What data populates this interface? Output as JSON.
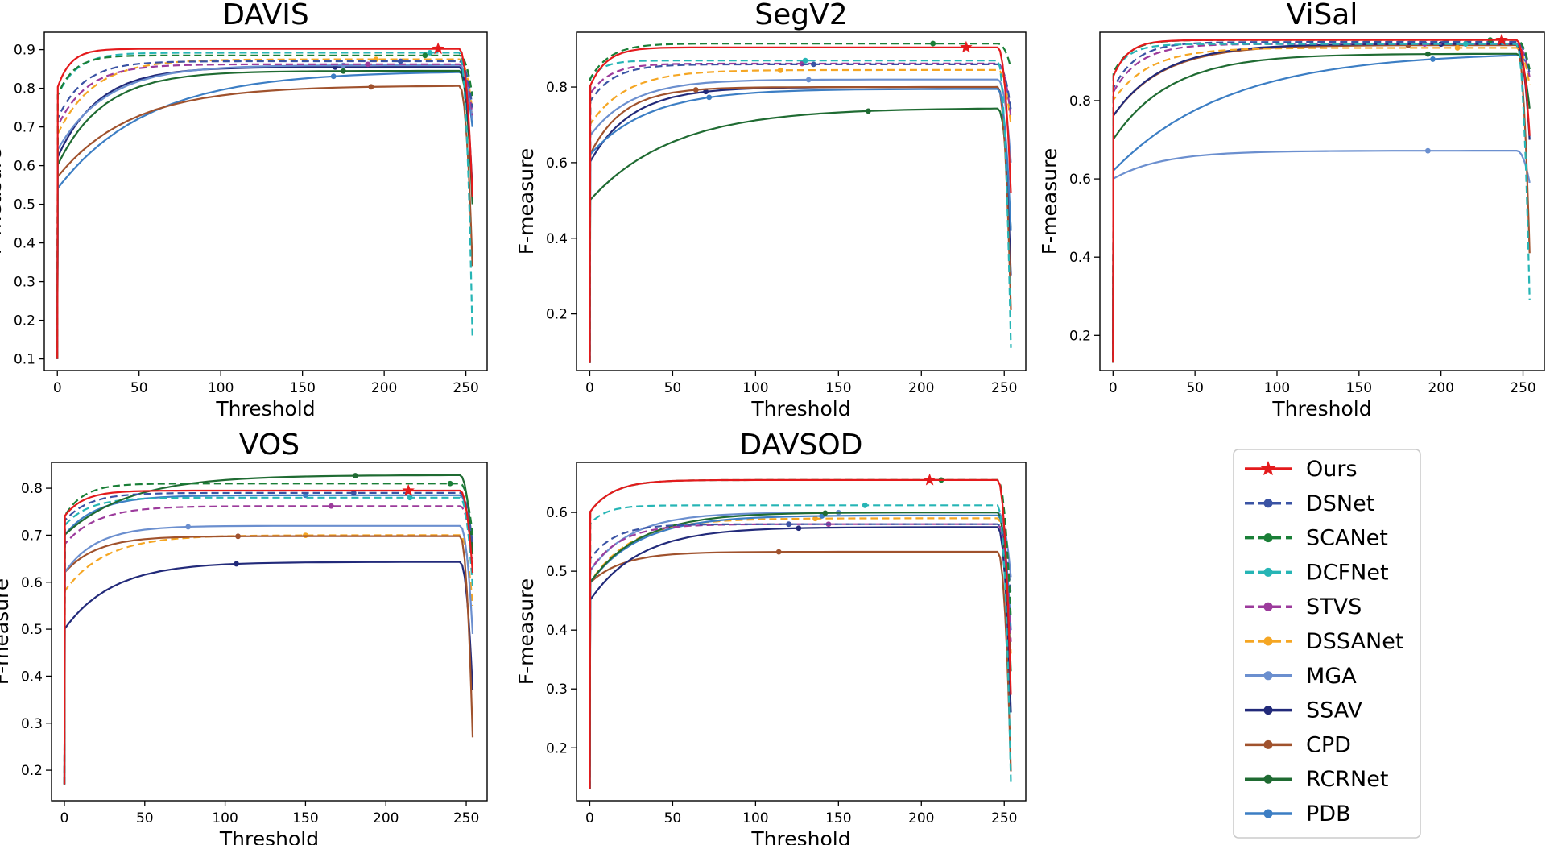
{
  "chart_data": [
    {
      "type": "line",
      "title": "DAVIS",
      "xlabel": "Threshold",
      "ylabel": "F-measure",
      "xlim": [
        -8,
        263
      ],
      "ylim": [
        0.07,
        0.945
      ],
      "xticks": [
        0,
        50,
        100,
        150,
        200,
        250
      ],
      "yticks": [
        0.1,
        0.2,
        0.3,
        0.4,
        0.5,
        0.6,
        0.7,
        0.8,
        0.9
      ],
      "series": [
        {
          "name": "PDB",
          "start": 0.1,
          "a": 0.54,
          "plateau": 0.845,
          "tau": 55,
          "drop": 0.7,
          "peak_x": 169
        },
        {
          "name": "CPD",
          "start": 0.1,
          "a": 0.57,
          "plateau": 0.807,
          "tau": 45,
          "drop": 0.34,
          "peak_x": 192
        },
        {
          "name": "RCRNet",
          "start": 0.1,
          "a": 0.6,
          "plateau": 0.845,
          "tau": 28,
          "drop": 0.5,
          "peak_x": 175
        },
        {
          "name": "SSAV",
          "start": 0.1,
          "a": 0.62,
          "plateau": 0.855,
          "tau": 25,
          "drop": 0.54,
          "peak_x": 170
        },
        {
          "name": "MGA",
          "start": 0.1,
          "a": 0.64,
          "plateau": 0.86,
          "tau": 30,
          "drop": 0.72,
          "peak_x": 175
        },
        {
          "name": "DSSANet",
          "start": 0.1,
          "a": 0.68,
          "plateau": 0.875,
          "tau": 22,
          "drop": 0.74,
          "peak_x": 195
        },
        {
          "name": "STVS",
          "start": 0.1,
          "a": 0.7,
          "plateau": 0.862,
          "tau": 18,
          "drop": 0.73,
          "peak_x": 190
        },
        {
          "name": "DSNet",
          "start": 0.1,
          "a": 0.72,
          "plateau": 0.87,
          "tau": 16,
          "drop": 0.75,
          "peak_x": 210
        },
        {
          "name": "DCFNet",
          "start": 0.1,
          "a": 0.78,
          "plateau": 0.892,
          "tau": 12,
          "drop": 0.16,
          "peak_x": 228
        },
        {
          "name": "SCANet",
          "start": 0.1,
          "a": 0.78,
          "plateau": 0.885,
          "tau": 10,
          "drop": 0.78,
          "peak_x": 225
        },
        {
          "name": "Ours",
          "start": 0.1,
          "a": 0.8,
          "plateau": 0.902,
          "tau": 8,
          "drop": 0.52,
          "peak_x": 233
        }
      ]
    },
    {
      "type": "line",
      "title": "SegV2",
      "xlabel": "Threshold",
      "ylabel": "F-measure",
      "xlim": [
        -8,
        263
      ],
      "ylim": [
        0.05,
        0.945
      ],
      "xticks": [
        0,
        50,
        100,
        150,
        200,
        250
      ],
      "yticks": [
        0.2,
        0.4,
        0.6,
        0.8
      ],
      "series": [
        {
          "name": "RCRNet",
          "start": 0.07,
          "a": 0.5,
          "plateau": 0.745,
          "tau": 50,
          "drop": 0.42,
          "peak_x": 168
        },
        {
          "name": "SSAV",
          "start": 0.07,
          "a": 0.6,
          "plateau": 0.8,
          "tau": 25,
          "drop": 0.3,
          "peak_x": 70
        },
        {
          "name": "CPD",
          "start": 0.07,
          "a": 0.62,
          "plateau": 0.8,
          "tau": 20,
          "drop": 0.21,
          "peak_x": 64
        },
        {
          "name": "PDB",
          "start": 0.07,
          "a": 0.62,
          "plateau": 0.795,
          "tau": 35,
          "drop": 0.42,
          "peak_x": 72
        },
        {
          "name": "MGA",
          "start": 0.07,
          "a": 0.67,
          "plateau": 0.82,
          "tau": 25,
          "drop": 0.6,
          "peak_x": 132
        },
        {
          "name": "DSSANet",
          "start": 0.07,
          "a": 0.7,
          "plateau": 0.845,
          "tau": 22,
          "drop": 0.7,
          "peak_x": 115
        },
        {
          "name": "STVS",
          "start": 0.07,
          "a": 0.78,
          "plateau": 0.862,
          "tau": 12,
          "drop": 0.72,
          "peak_x": 128
        },
        {
          "name": "DSNet",
          "start": 0.07,
          "a": 0.76,
          "plateau": 0.86,
          "tau": 14,
          "drop": 0.74,
          "peak_x": 135
        },
        {
          "name": "DCFNet",
          "start": 0.07,
          "a": 0.82,
          "plateau": 0.87,
          "tau": 8,
          "drop": 0.11,
          "peak_x": 130
        },
        {
          "name": "SCANet",
          "start": 0.07,
          "a": 0.82,
          "plateau": 0.915,
          "tau": 12,
          "drop": 0.85,
          "peak_x": 207
        },
        {
          "name": "Ours",
          "start": 0.07,
          "a": 0.8,
          "plateau": 0.905,
          "tau": 10,
          "drop": 0.52,
          "peak_x": 227
        }
      ]
    },
    {
      "type": "line",
      "title": "ViSal",
      "xlabel": "Threshold",
      "ylabel": "F-measure",
      "xlim": [
        -8,
        263
      ],
      "ylim": [
        0.11,
        0.975
      ],
      "xticks": [
        0,
        50,
        100,
        150,
        200,
        250
      ],
      "yticks": [
        0.2,
        0.4,
        0.6,
        0.8
      ],
      "series": [
        {
          "name": "MGA",
          "start": 0.13,
          "a": 0.6,
          "plateau": 0.672,
          "tau": 30,
          "drop": 0.59,
          "peak_x": 192
        },
        {
          "name": "PDB",
          "start": 0.13,
          "a": 0.62,
          "plateau": 0.925,
          "tau": 70,
          "drop": 0.88,
          "peak_x": 195
        },
        {
          "name": "RCRNet",
          "start": 0.13,
          "a": 0.7,
          "plateau": 0.92,
          "tau": 35,
          "drop": 0.78,
          "peak_x": 192
        },
        {
          "name": "CPD",
          "start": 0.13,
          "a": 0.76,
          "plateau": 0.942,
          "tau": 30,
          "drop": 0.41,
          "peak_x": 180
        },
        {
          "name": "SSAV",
          "start": 0.13,
          "a": 0.76,
          "plateau": 0.945,
          "tau": 30,
          "drop": 0.7,
          "peak_x": 200
        },
        {
          "name": "DSSANet",
          "start": 0.13,
          "a": 0.8,
          "plateau": 0.935,
          "tau": 22,
          "drop": 0.84,
          "peak_x": 210
        },
        {
          "name": "STVS",
          "start": 0.13,
          "a": 0.82,
          "plateau": 0.945,
          "tau": 16,
          "drop": 0.86,
          "peak_x": 190
        },
        {
          "name": "DSNet",
          "start": 0.13,
          "a": 0.83,
          "plateau": 0.95,
          "tau": 14,
          "drop": 0.87,
          "peak_x": 203
        },
        {
          "name": "DCFNet",
          "start": 0.13,
          "a": 0.87,
          "plateau": 0.945,
          "tau": 10,
          "drop": 0.29,
          "peak_x": 215
        },
        {
          "name": "SCANet",
          "start": 0.13,
          "a": 0.87,
          "plateau": 0.955,
          "tau": 10,
          "drop": 0.88,
          "peak_x": 230
        },
        {
          "name": "Ours",
          "start": 0.13,
          "a": 0.86,
          "plateau": 0.955,
          "tau": 9,
          "drop": 0.71,
          "peak_x": 237
        }
      ]
    },
    {
      "type": "line",
      "title": "VOS",
      "xlabel": "Threshold",
      "ylabel": "F-measure",
      "xlim": [
        -8,
        263
      ],
      "ylim": [
        0.135,
        0.855
      ],
      "xticks": [
        0,
        50,
        100,
        150,
        200,
        250
      ],
      "yticks": [
        0.2,
        0.3,
        0.4,
        0.5,
        0.6,
        0.7,
        0.8
      ],
      "series": [
        {
          "name": "SSAV",
          "start": 0.17,
          "a": 0.5,
          "plateau": 0.643,
          "tau": 30,
          "drop": 0.37,
          "peak_x": 107
        },
        {
          "name": "DSSANet",
          "start": 0.17,
          "a": 0.58,
          "plateau": 0.7,
          "tau": 25,
          "drop": 0.55,
          "peak_x": 150
        },
        {
          "name": "CPD",
          "start": 0.17,
          "a": 0.62,
          "plateau": 0.698,
          "tau": 20,
          "drop": 0.27,
          "peak_x": 108
        },
        {
          "name": "MGA",
          "start": 0.17,
          "a": 0.62,
          "plateau": 0.72,
          "tau": 20,
          "drop": 0.49,
          "peak_x": 77
        },
        {
          "name": "STVS",
          "start": 0.17,
          "a": 0.68,
          "plateau": 0.762,
          "tau": 20,
          "drop": 0.65,
          "peak_x": 166
        },
        {
          "name": "PDB",
          "start": 0.17,
          "a": 0.7,
          "plateau": 0.785,
          "tau": 20,
          "drop": 0.66,
          "peak_x": 150
        },
        {
          "name": "DCFNet",
          "start": 0.17,
          "a": 0.72,
          "plateau": 0.78,
          "tau": 15,
          "drop": 0.59,
          "peak_x": 215
        },
        {
          "name": "RCRNet",
          "start": 0.17,
          "a": 0.7,
          "plateau": 0.828,
          "tau": 40,
          "drop": 0.66,
          "peak_x": 181
        },
        {
          "name": "DSNet",
          "start": 0.17,
          "a": 0.73,
          "plateau": 0.79,
          "tau": 15,
          "drop": 0.68,
          "peak_x": 180
        },
        {
          "name": "SCANet",
          "start": 0.17,
          "a": 0.74,
          "plateau": 0.81,
          "tau": 12,
          "drop": 0.7,
          "peak_x": 240
        },
        {
          "name": "Ours",
          "start": 0.17,
          "a": 0.74,
          "plateau": 0.795,
          "tau": 12,
          "drop": 0.62,
          "peak_x": 214
        }
      ]
    },
    {
      "type": "line",
      "title": "DAVSOD",
      "xlabel": "Threshold",
      "ylabel": "F-measure",
      "xlim": [
        -8,
        263
      ],
      "ylim": [
        0.11,
        0.685
      ],
      "xticks": [
        0,
        50,
        100,
        150,
        200,
        250
      ],
      "yticks": [
        0.2,
        0.3,
        0.4,
        0.5,
        0.6
      ],
      "series": [
        {
          "name": "CPD",
          "start": 0.13,
          "a": 0.48,
          "plateau": 0.533,
          "tau": 20,
          "drop": 0.16,
          "peak_x": 114
        },
        {
          "name": "SSAV",
          "start": 0.13,
          "a": 0.45,
          "plateau": 0.575,
          "tau": 30,
          "drop": 0.26,
          "peak_x": 126
        },
        {
          "name": "DSSANet",
          "start": 0.13,
          "a": 0.48,
          "plateau": 0.59,
          "tau": 25,
          "drop": 0.36,
          "peak_x": 136
        },
        {
          "name": "MGA",
          "start": 0.13,
          "a": 0.5,
          "plateau": 0.6,
          "tau": 25,
          "drop": 0.49,
          "peak_x": 150
        },
        {
          "name": "PDB",
          "start": 0.13,
          "a": 0.48,
          "plateau": 0.595,
          "tau": 30,
          "drop": 0.4,
          "peak_x": 140
        },
        {
          "name": "RCRNet",
          "start": 0.13,
          "a": 0.48,
          "plateau": 0.6,
          "tau": 30,
          "drop": 0.33,
          "peak_x": 142
        },
        {
          "name": "STVS",
          "start": 0.13,
          "a": 0.5,
          "plateau": 0.58,
          "tau": 18,
          "drop": 0.38,
          "peak_x": 144
        },
        {
          "name": "DSNet",
          "start": 0.13,
          "a": 0.52,
          "plateau": 0.58,
          "tau": 15,
          "drop": 0.46,
          "peak_x": 120
        },
        {
          "name": "DCFNet",
          "start": 0.13,
          "a": 0.58,
          "plateau": 0.612,
          "tau": 10,
          "drop": 0.14,
          "peak_x": 166
        },
        {
          "name": "SCANet",
          "start": 0.13,
          "a": 0.6,
          "plateau": 0.655,
          "tau": 14,
          "drop": 0.42,
          "peak_x": 212
        },
        {
          "name": "Ours",
          "start": 0.13,
          "a": 0.6,
          "plateau": 0.655,
          "tau": 14,
          "drop": 0.29,
          "peak_x": 205
        }
      ]
    }
  ],
  "legend": {
    "placement": "bottom-right",
    "entries": [
      {
        "name": "Ours",
        "color": "#e41a1c",
        "dash": "solid",
        "marker": "star"
      },
      {
        "name": "DSNet",
        "color": "#3a53a4",
        "dash": "dashed",
        "marker": "circle"
      },
      {
        "name": "SCANet",
        "color": "#1a7f37",
        "dash": "dashed",
        "marker": "circle"
      },
      {
        "name": "DCFNet",
        "color": "#26b5b5",
        "dash": "dashed",
        "marker": "circle"
      },
      {
        "name": "STVS",
        "color": "#9c3b9c",
        "dash": "dashed",
        "marker": "circle"
      },
      {
        "name": "DSSANet",
        "color": "#f5a623",
        "dash": "dashed",
        "marker": "circle"
      },
      {
        "name": "MGA",
        "color": "#6b8fcf",
        "dash": "solid",
        "marker": "circle"
      },
      {
        "name": "SSAV",
        "color": "#222a7a",
        "dash": "solid",
        "marker": "circle"
      },
      {
        "name": "CPD",
        "color": "#a0522d",
        "dash": "solid",
        "marker": "circle"
      },
      {
        "name": "RCRNet",
        "color": "#1f6b32",
        "dash": "solid",
        "marker": "circle"
      },
      {
        "name": "PDB",
        "color": "#3c7ec4",
        "dash": "solid",
        "marker": "circle"
      }
    ]
  }
}
